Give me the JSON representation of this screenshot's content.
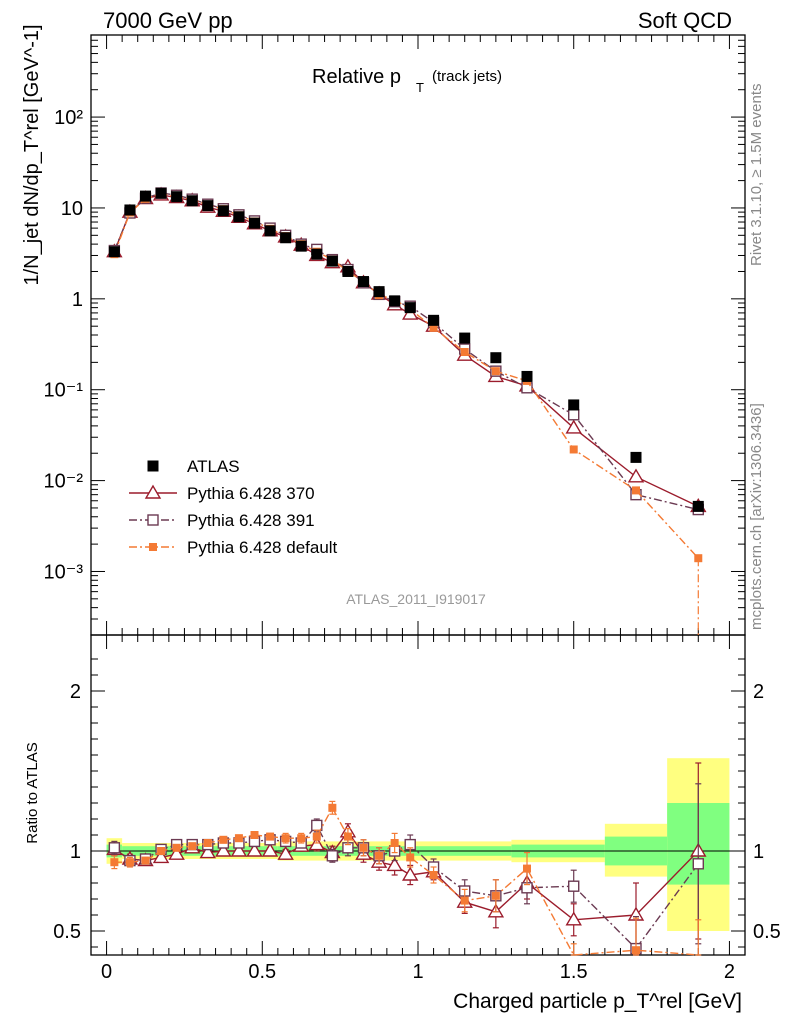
{
  "header": {
    "left": "7000 GeV pp",
    "right": "Soft QCD"
  },
  "side_labels": {
    "rivet": "Rivet 3.1.10, ≥ 1.5M events",
    "mcplots": "mcplots.cern.ch [arXiv:1306.3436]"
  },
  "chart_data": {
    "type": "scatter",
    "title_main": "Relative p",
    "title_sub": "T",
    "title_small": "(track jets)",
    "analysis_id": "ATLAS_2011_I919017",
    "ylabel": "1/N_jet dN/dp_T^rel [GeV^-1]",
    "ratio_ylabel": "Ratio to ATLAS",
    "xlabel": "Charged particle p_T^rel [GeV]",
    "xlim": [
      -0.05,
      2.05
    ],
    "ylim_log": [
      0.0002,
      800
    ],
    "ratio_ylim": [
      0.35,
      2.35
    ],
    "yscale": "log",
    "x_ticks": [
      "0",
      "0.5",
      "1",
      "1.5",
      "2"
    ],
    "y_ticks": [
      "10⁻³",
      "10⁻²",
      "10⁻¹",
      "1",
      "10",
      "10²"
    ],
    "ratio_ticks": [
      "0.5",
      "1",
      "2"
    ],
    "legend_position": "lower-left",
    "x": [
      0.025,
      0.075,
      0.125,
      0.175,
      0.225,
      0.275,
      0.325,
      0.375,
      0.425,
      0.475,
      0.525,
      0.575,
      0.625,
      0.675,
      0.725,
      0.775,
      0.825,
      0.875,
      0.925,
      0.975,
      1.05,
      1.15,
      1.25,
      1.35,
      1.5,
      1.7,
      1.9
    ],
    "bands": [
      {
        "x0": 0.0,
        "x1": 0.05,
        "yellow": [
          0.92,
          1.08
        ],
        "green": [
          0.96,
          1.04
        ]
      },
      {
        "x0": 0.05,
        "x1": 0.55,
        "yellow": [
          0.95,
          1.05
        ],
        "green": [
          0.97,
          1.03
        ]
      },
      {
        "x0": 0.55,
        "x1": 1.3,
        "yellow": [
          0.94,
          1.06
        ],
        "green": [
          0.97,
          1.03
        ]
      },
      {
        "x0": 1.3,
        "x1": 1.6,
        "yellow": [
          0.93,
          1.07
        ],
        "green": [
          0.96,
          1.04
        ]
      },
      {
        "x0": 1.6,
        "x1": 1.8,
        "yellow": [
          0.84,
          1.17
        ],
        "green": [
          0.91,
          1.09
        ]
      },
      {
        "x0": 1.8,
        "x1": 2.0,
        "yellow": [
          0.5,
          1.58
        ],
        "green": [
          0.79,
          1.3
        ]
      }
    ],
    "series": [
      {
        "name": "ATLAS",
        "color": "#000000",
        "marker": "filled-square",
        "values": [
          3.3,
          9.5,
          13.5,
          14.5,
          13.3,
          12.0,
          10.6,
          9.3,
          8.0,
          6.8,
          5.6,
          4.7,
          3.8,
          3.1,
          2.6,
          2.0,
          1.55,
          1.2,
          0.95,
          0.8,
          0.58,
          0.37,
          0.225,
          0.14,
          0.068,
          0.018,
          0.0052
        ]
      },
      {
        "name": "Pythia 6.428 370",
        "color": "#9b1c2c",
        "marker": "open-triangle",
        "line": "solid",
        "values": [
          3.3,
          9.0,
          12.7,
          13.9,
          13.0,
          12.0,
          10.2,
          9.2,
          7.9,
          6.7,
          5.6,
          4.8,
          3.9,
          3.0,
          2.5,
          2.25,
          1.5,
          1.13,
          0.86,
          0.68,
          0.5,
          0.24,
          0.14,
          0.11,
          0.038,
          0.011,
          0.0052
        ],
        "ratio": [
          1.01,
          0.95,
          0.94,
          0.96,
          0.98,
          1.02,
          0.99,
          1.0,
          1.0,
          1.0,
          1.0,
          0.98,
          1.03,
          1.04,
          0.99,
          1.12,
          0.98,
          0.93,
          0.91,
          0.85,
          0.87,
          0.68,
          0.62,
          0.8,
          0.57,
          0.6,
          1.0
        ],
        "ratio_err": [
          0.04,
          0.03,
          0.02,
          0.02,
          0.02,
          0.02,
          0.02,
          0.02,
          0.02,
          0.02,
          0.02,
          0.03,
          0.03,
          0.04,
          0.04,
          0.05,
          0.05,
          0.05,
          0.06,
          0.06,
          0.05,
          0.07,
          0.1,
          0.1,
          0.1,
          0.2,
          0.55
        ]
      },
      {
        "name": "Pythia 6.428 391",
        "color": "#6b3a52",
        "marker": "open-square",
        "line": "dash-dot",
        "values": [
          3.4,
          8.8,
          12.8,
          14.6,
          13.8,
          12.5,
          11.0,
          9.8,
          8.4,
          7.2,
          6.0,
          5.0,
          4.0,
          3.5,
          2.7,
          2.1,
          1.5,
          1.12,
          0.93,
          0.83,
          0.55,
          0.28,
          0.16,
          0.105,
          0.053,
          0.007,
          0.0048
        ],
        "ratio": [
          1.02,
          0.94,
          0.95,
          1.01,
          1.04,
          1.04,
          1.04,
          1.05,
          1.05,
          1.06,
          1.07,
          1.06,
          1.05,
          1.16,
          0.97,
          1.02,
          1.02,
          0.97,
          1.0,
          1.04,
          0.9,
          0.75,
          0.72,
          0.77,
          0.78,
          0.39,
          0.92
        ],
        "ratio_err": [
          0.04,
          0.03,
          0.02,
          0.02,
          0.02,
          0.02,
          0.02,
          0.02,
          0.02,
          0.02,
          0.02,
          0.03,
          0.03,
          0.04,
          0.04,
          0.05,
          0.05,
          0.05,
          0.06,
          0.06,
          0.05,
          0.07,
          0.1,
          0.1,
          0.1,
          0.2,
          0.5
        ]
      },
      {
        "name": "Pythia 6.428 default",
        "color": "#f47a34",
        "marker": "filled-small-square",
        "line": "dash-dot",
        "values": [
          3.1,
          8.9,
          12.6,
          14.4,
          13.2,
          12.4,
          10.8,
          9.7,
          8.3,
          7.1,
          5.9,
          4.9,
          4.0,
          3.3,
          2.7,
          2.0,
          1.55,
          1.1,
          0.98,
          0.77,
          0.48,
          0.26,
          0.16,
          0.125,
          0.022,
          0.0078,
          0.0014
        ],
        "ratio": [
          0.93,
          0.93,
          0.94,
          1.0,
          1.02,
          1.03,
          1.05,
          1.07,
          1.08,
          1.1,
          1.09,
          1.08,
          1.08,
          1.09,
          1.27,
          1.09,
          1.02,
          0.97,
          1.05,
          0.96,
          0.85,
          0.69,
          0.72,
          0.89,
          0.32,
          0.38,
          0.27
        ],
        "ratio_err": [
          0.04,
          0.03,
          0.02,
          0.02,
          0.02,
          0.02,
          0.02,
          0.02,
          0.02,
          0.02,
          0.02,
          0.03,
          0.03,
          0.04,
          0.04,
          0.05,
          0.05,
          0.05,
          0.06,
          0.06,
          0.05,
          0.07,
          0.1,
          0.1,
          0.1,
          0.2,
          0.3
        ]
      }
    ]
  }
}
